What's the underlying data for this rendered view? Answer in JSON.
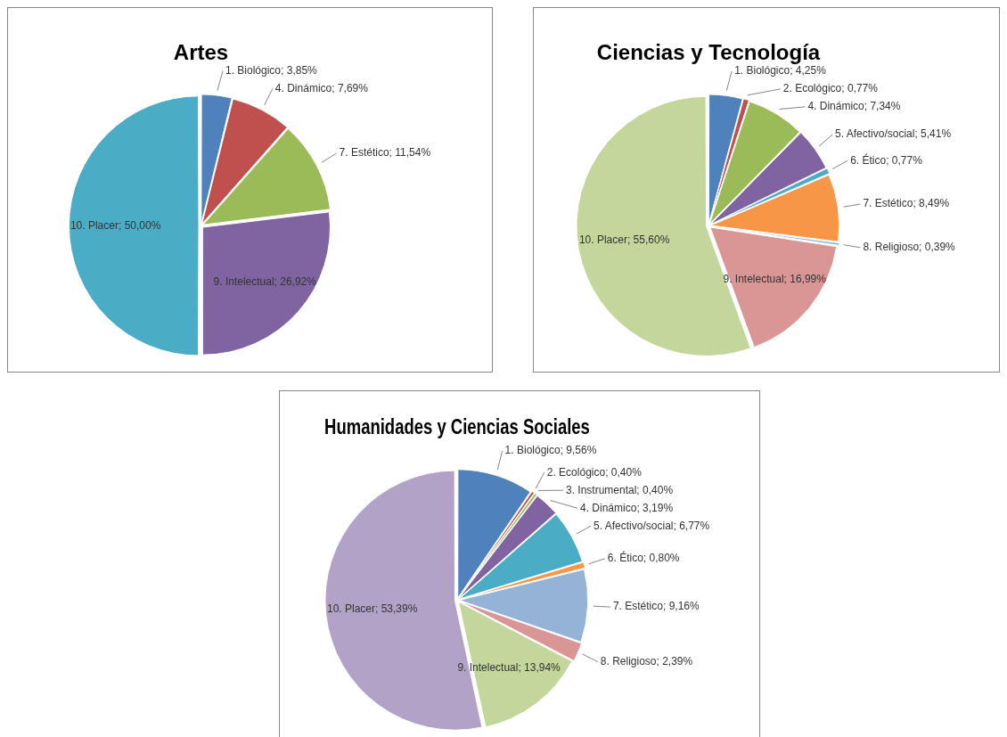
{
  "chart_data": [
    {
      "type": "pie",
      "title": "Artes",
      "categories": [
        "1. Biológico",
        "4. Dinámico",
        "7. Estético",
        "9. Intelectual",
        "10. Placer"
      ],
      "values": [
        3.85,
        7.69,
        11.54,
        26.92,
        50.0
      ],
      "colors": [
        "#4f81bd",
        "#c0504d",
        "#9bbb59",
        "#8064a2",
        "#4bacc6"
      ],
      "value_labels": [
        "3,85%",
        "7,69%",
        "11,54%",
        "26,92%",
        "50,00%"
      ]
    },
    {
      "type": "pie",
      "title": "Ciencias y Tecnología",
      "categories": [
        "1. Biológico",
        "2. Ecológico",
        "4. Dinámico",
        "5. Afectivo/social",
        "6. Ético",
        "7. Estético",
        "8. Religioso",
        "9. Intelectual",
        "10. Placer"
      ],
      "values": [
        4.25,
        0.77,
        7.34,
        5.41,
        0.77,
        8.49,
        0.39,
        16.99,
        55.6
      ],
      "colors": [
        "#4f81bd",
        "#c0504d",
        "#9bbb59",
        "#8064a2",
        "#4bacc6",
        "#f79646",
        "#95b3d7",
        "#d99694",
        "#c3d69b"
      ],
      "value_labels": [
        "4,25%",
        "0,77%",
        "7,34%",
        "5,41%",
        "0,77%",
        "8,49%",
        "0,39%",
        "16,99%",
        "55,60%"
      ]
    },
    {
      "type": "pie",
      "title": "Humanidades y Ciencias Sociales",
      "categories": [
        "1. Biológico",
        "2. Ecológico",
        "3. Instrumental",
        "4. Dinámico",
        "5. Afectivo/social",
        "6. Ético",
        "7. Estético",
        "8. Religioso",
        "9. Intelectual",
        "10. Placer"
      ],
      "values": [
        9.56,
        0.4,
        0.4,
        3.19,
        6.77,
        0.8,
        9.16,
        2.39,
        13.94,
        53.39
      ],
      "colors": [
        "#4f81bd",
        "#c0504d",
        "#9bbb59",
        "#8064a2",
        "#4bacc6",
        "#f79646",
        "#95b3d7",
        "#d99694",
        "#c3d69b",
        "#b2a2c7"
      ],
      "value_labels": [
        "9,56%",
        "0,40%",
        "0,40%",
        "3,19%",
        "6,77%",
        "0,80%",
        "9,16%",
        "2,39%",
        "13,94%",
        "53,39%"
      ]
    }
  ]
}
